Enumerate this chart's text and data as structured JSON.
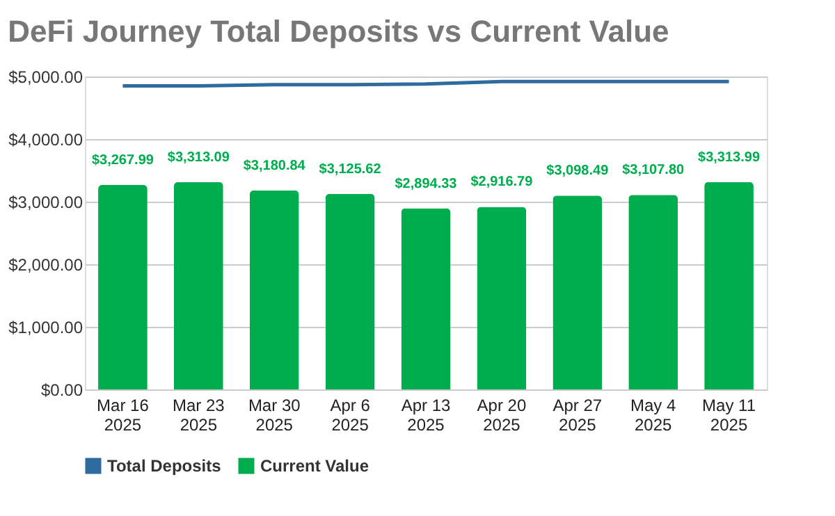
{
  "chart_data": {
    "type": "bar",
    "title": "DeFi Journey Total Deposits vs Current Value",
    "categories": [
      "Mar 16\n2025",
      "Mar 23\n2025",
      "Mar 30\n2025",
      "Apr 6\n2025",
      "Apr 13\n2025",
      "Apr 20\n2025",
      "Apr 27\n2025",
      "May 4\n2025",
      "May 11\n2025"
    ],
    "series": [
      {
        "name": "Total Deposits",
        "type": "line",
        "color": "#2e6b9e",
        "values": [
          4850,
          4850,
          4870,
          4870,
          4880,
          4920,
          4920,
          4920,
          4920
        ]
      },
      {
        "name": "Current Value",
        "color": "#00ad4e",
        "values": [
          3267.99,
          3313.09,
          3180.84,
          3125.62,
          2894.33,
          2916.79,
          3098.49,
          3107.8,
          3313.99
        ],
        "value_labels": [
          "$3,267.99",
          "$3,313.09",
          "$3,180.84",
          "$3,125.62",
          "$2,894.33",
          "$2,916.79",
          "$3,098.49",
          "$3,107.80",
          "$3,313.99"
        ]
      }
    ],
    "ylim": [
      0,
      5000
    ],
    "yticks": [
      {
        "value": 0,
        "label": "$0.00"
      },
      {
        "value": 1000,
        "label": "$1,000.00"
      },
      {
        "value": 2000,
        "label": "$2,000.00"
      },
      {
        "value": 3000,
        "label": "$3,000.00"
      },
      {
        "value": 4000,
        "label": "$4,000.00"
      },
      {
        "value": 5000,
        "label": "$5,000.00"
      }
    ],
    "grid": "y",
    "legend": "bottom"
  }
}
